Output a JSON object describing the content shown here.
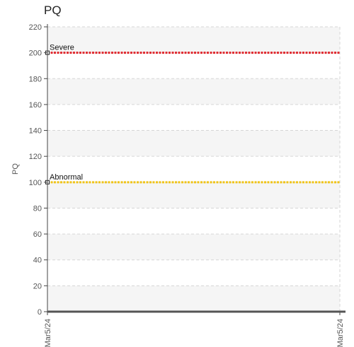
{
  "chart_data": {
    "type": "line",
    "title": "PQ",
    "xlabel": "",
    "ylabel": "PQ",
    "ylim": [
      0,
      220
    ],
    "y_ticks": [
      0,
      20,
      40,
      60,
      80,
      100,
      120,
      140,
      160,
      180,
      200,
      220
    ],
    "x_ticks": [
      "Mar5/24",
      "Mar5/24"
    ],
    "grid": true,
    "bands": "alternating light grey horizontal bands",
    "series": [
      {
        "name": "Severe",
        "values": [
          200,
          200
        ],
        "color": "#e0282e",
        "style": "dotted"
      },
      {
        "name": "Abnormal",
        "values": [
          100,
          100
        ],
        "color": "#f0c419",
        "style": "dotted"
      }
    ]
  }
}
